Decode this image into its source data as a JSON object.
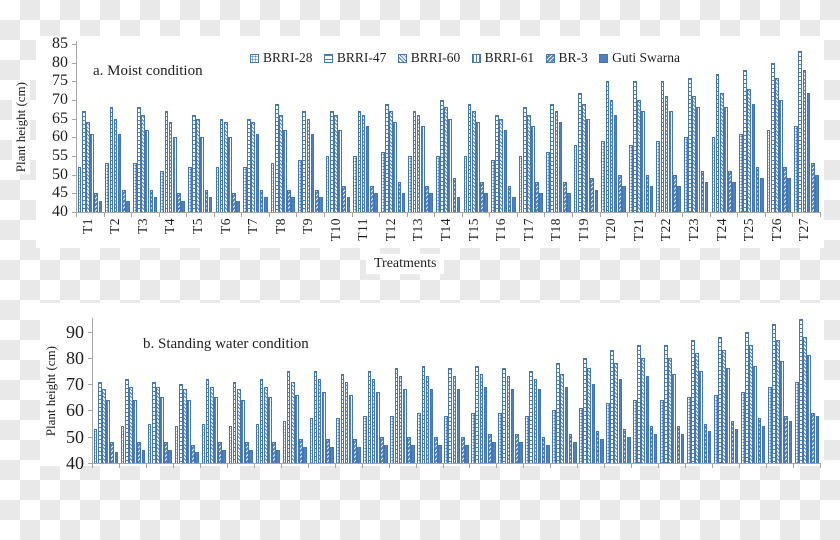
{
  "colors": {
    "bar_blue": "#4F81BD",
    "bar_border": "#4376B4",
    "axis_gray": "#a6a6a6",
    "text": "#1f1f1f"
  },
  "x_axis_title": "Treatments",
  "chart_data": [
    {
      "type": "bar",
      "title": "a. Moist condition",
      "xlabel": "Treatments",
      "ylabel": "Plant height (cm)",
      "ylim": [
        40,
        85
      ],
      "yticks": [
        40,
        45,
        50,
        55,
        60,
        65,
        70,
        75,
        80,
        85
      ],
      "grid": false,
      "legend_position": "top",
      "categories": [
        "T1",
        "T2",
        "T3",
        "T4",
        "T5",
        "T6",
        "T7",
        "T8",
        "T9",
        "T10",
        "T11",
        "T12",
        "T13",
        "T14",
        "T15",
        "T16",
        "T17",
        "T18",
        "T19",
        "T20",
        "T21",
        "T22",
        "T23",
        "T24",
        "T25",
        "T26",
        "T27"
      ],
      "series": [
        {
          "name": "BRRI-28",
          "values": [
            52,
            53,
            53,
            51,
            52,
            52,
            52,
            53,
            54,
            55,
            55,
            56,
            55,
            55,
            55,
            54,
            55,
            56,
            58,
            59,
            58,
            59,
            60,
            60,
            61,
            62,
            63
          ]
        },
        {
          "name": "BRRI-47",
          "values": [
            67,
            68,
            68,
            67,
            66,
            65,
            65,
            69,
            67,
            67,
            67,
            69,
            67,
            70,
            69,
            66,
            68,
            69,
            72,
            75,
            75,
            75,
            76,
            77,
            78,
            80,
            83
          ]
        },
        {
          "name": "BRRI-60",
          "values": [
            64,
            65,
            66,
            64,
            65,
            64,
            64,
            66,
            65,
            66,
            66,
            67,
            66,
            68,
            67,
            65,
            66,
            67,
            69,
            70,
            70,
            71,
            71,
            72,
            73,
            76,
            78
          ]
        },
        {
          "name": "BRRI-61",
          "values": [
            61,
            61,
            62,
            60,
            60,
            60,
            61,
            62,
            61,
            62,
            63,
            64,
            63,
            65,
            64,
            62,
            63,
            64,
            65,
            66,
            67,
            67,
            68,
            68,
            69,
            70,
            72
          ]
        },
        {
          "name": "BR-3",
          "values": [
            45,
            46,
            46,
            45,
            46,
            45,
            46,
            46,
            46,
            47,
            47,
            48,
            47,
            49,
            48,
            47,
            48,
            48,
            49,
            50,
            50,
            50,
            51,
            51,
            52,
            52,
            53
          ]
        },
        {
          "name": "Guti Swarna",
          "values": [
            43,
            43,
            44,
            43,
            44,
            43,
            44,
            44,
            44,
            44,
            45,
            45,
            45,
            44,
            45,
            44,
            45,
            45,
            46,
            47,
            47,
            47,
            48,
            48,
            49,
            49,
            50
          ]
        }
      ]
    },
    {
      "type": "bar",
      "title": "b. Standing water condition",
      "xlabel": "",
      "ylabel": "Plant height (cm)",
      "ylim": [
        40,
        95
      ],
      "yticks": [
        40,
        50,
        60,
        70,
        80,
        90
      ],
      "grid": false,
      "legend_position": "none",
      "categories": [
        "T1",
        "T2",
        "T3",
        "T4",
        "T5",
        "T6",
        "T7",
        "T8",
        "T9",
        "T10",
        "T11",
        "T12",
        "T13",
        "T14",
        "T15",
        "T16",
        "T17",
        "T18",
        "T19",
        "T20",
        "T21",
        "T22",
        "T23",
        "T24",
        "T25",
        "T26",
        "T27"
      ],
      "series": [
        {
          "name": "BRRI-28",
          "values": [
            53,
            54,
            55,
            54,
            55,
            54,
            55,
            56,
            57,
            57,
            58,
            58,
            59,
            58,
            59,
            59,
            58,
            60,
            61,
            63,
            64,
            64,
            65,
            66,
            67,
            69,
            71
          ]
        },
        {
          "name": "BRRI-47",
          "values": [
            71,
            72,
            71,
            70,
            72,
            71,
            72,
            75,
            75,
            74,
            75,
            76,
            77,
            76,
            77,
            76,
            75,
            78,
            80,
            83,
            85,
            85,
            87,
            88,
            90,
            93,
            95
          ]
        },
        {
          "name": "BRRI-60",
          "values": [
            68,
            69,
            69,
            68,
            69,
            68,
            69,
            71,
            72,
            71,
            72,
            73,
            73,
            73,
            74,
            73,
            72,
            74,
            76,
            78,
            80,
            80,
            82,
            83,
            85,
            87,
            88
          ]
        },
        {
          "name": "BRRI-61",
          "values": [
            64,
            64,
            65,
            64,
            65,
            64,
            65,
            66,
            67,
            66,
            67,
            68,
            68,
            68,
            69,
            68,
            68,
            69,
            70,
            72,
            73,
            74,
            75,
            76,
            77,
            79,
            81
          ]
        },
        {
          "name": "BR-3",
          "values": [
            48,
            48,
            48,
            47,
            48,
            48,
            48,
            49,
            49,
            49,
            50,
            50,
            50,
            50,
            51,
            51,
            50,
            51,
            52,
            53,
            54,
            54,
            55,
            56,
            57,
            58,
            59
          ]
        },
        {
          "name": "Guti Swarna",
          "values": [
            44,
            45,
            45,
            44,
            45,
            45,
            45,
            46,
            46,
            46,
            47,
            47,
            47,
            47,
            48,
            48,
            47,
            48,
            49,
            50,
            51,
            51,
            52,
            53,
            54,
            56,
            58
          ]
        }
      ]
    }
  ]
}
